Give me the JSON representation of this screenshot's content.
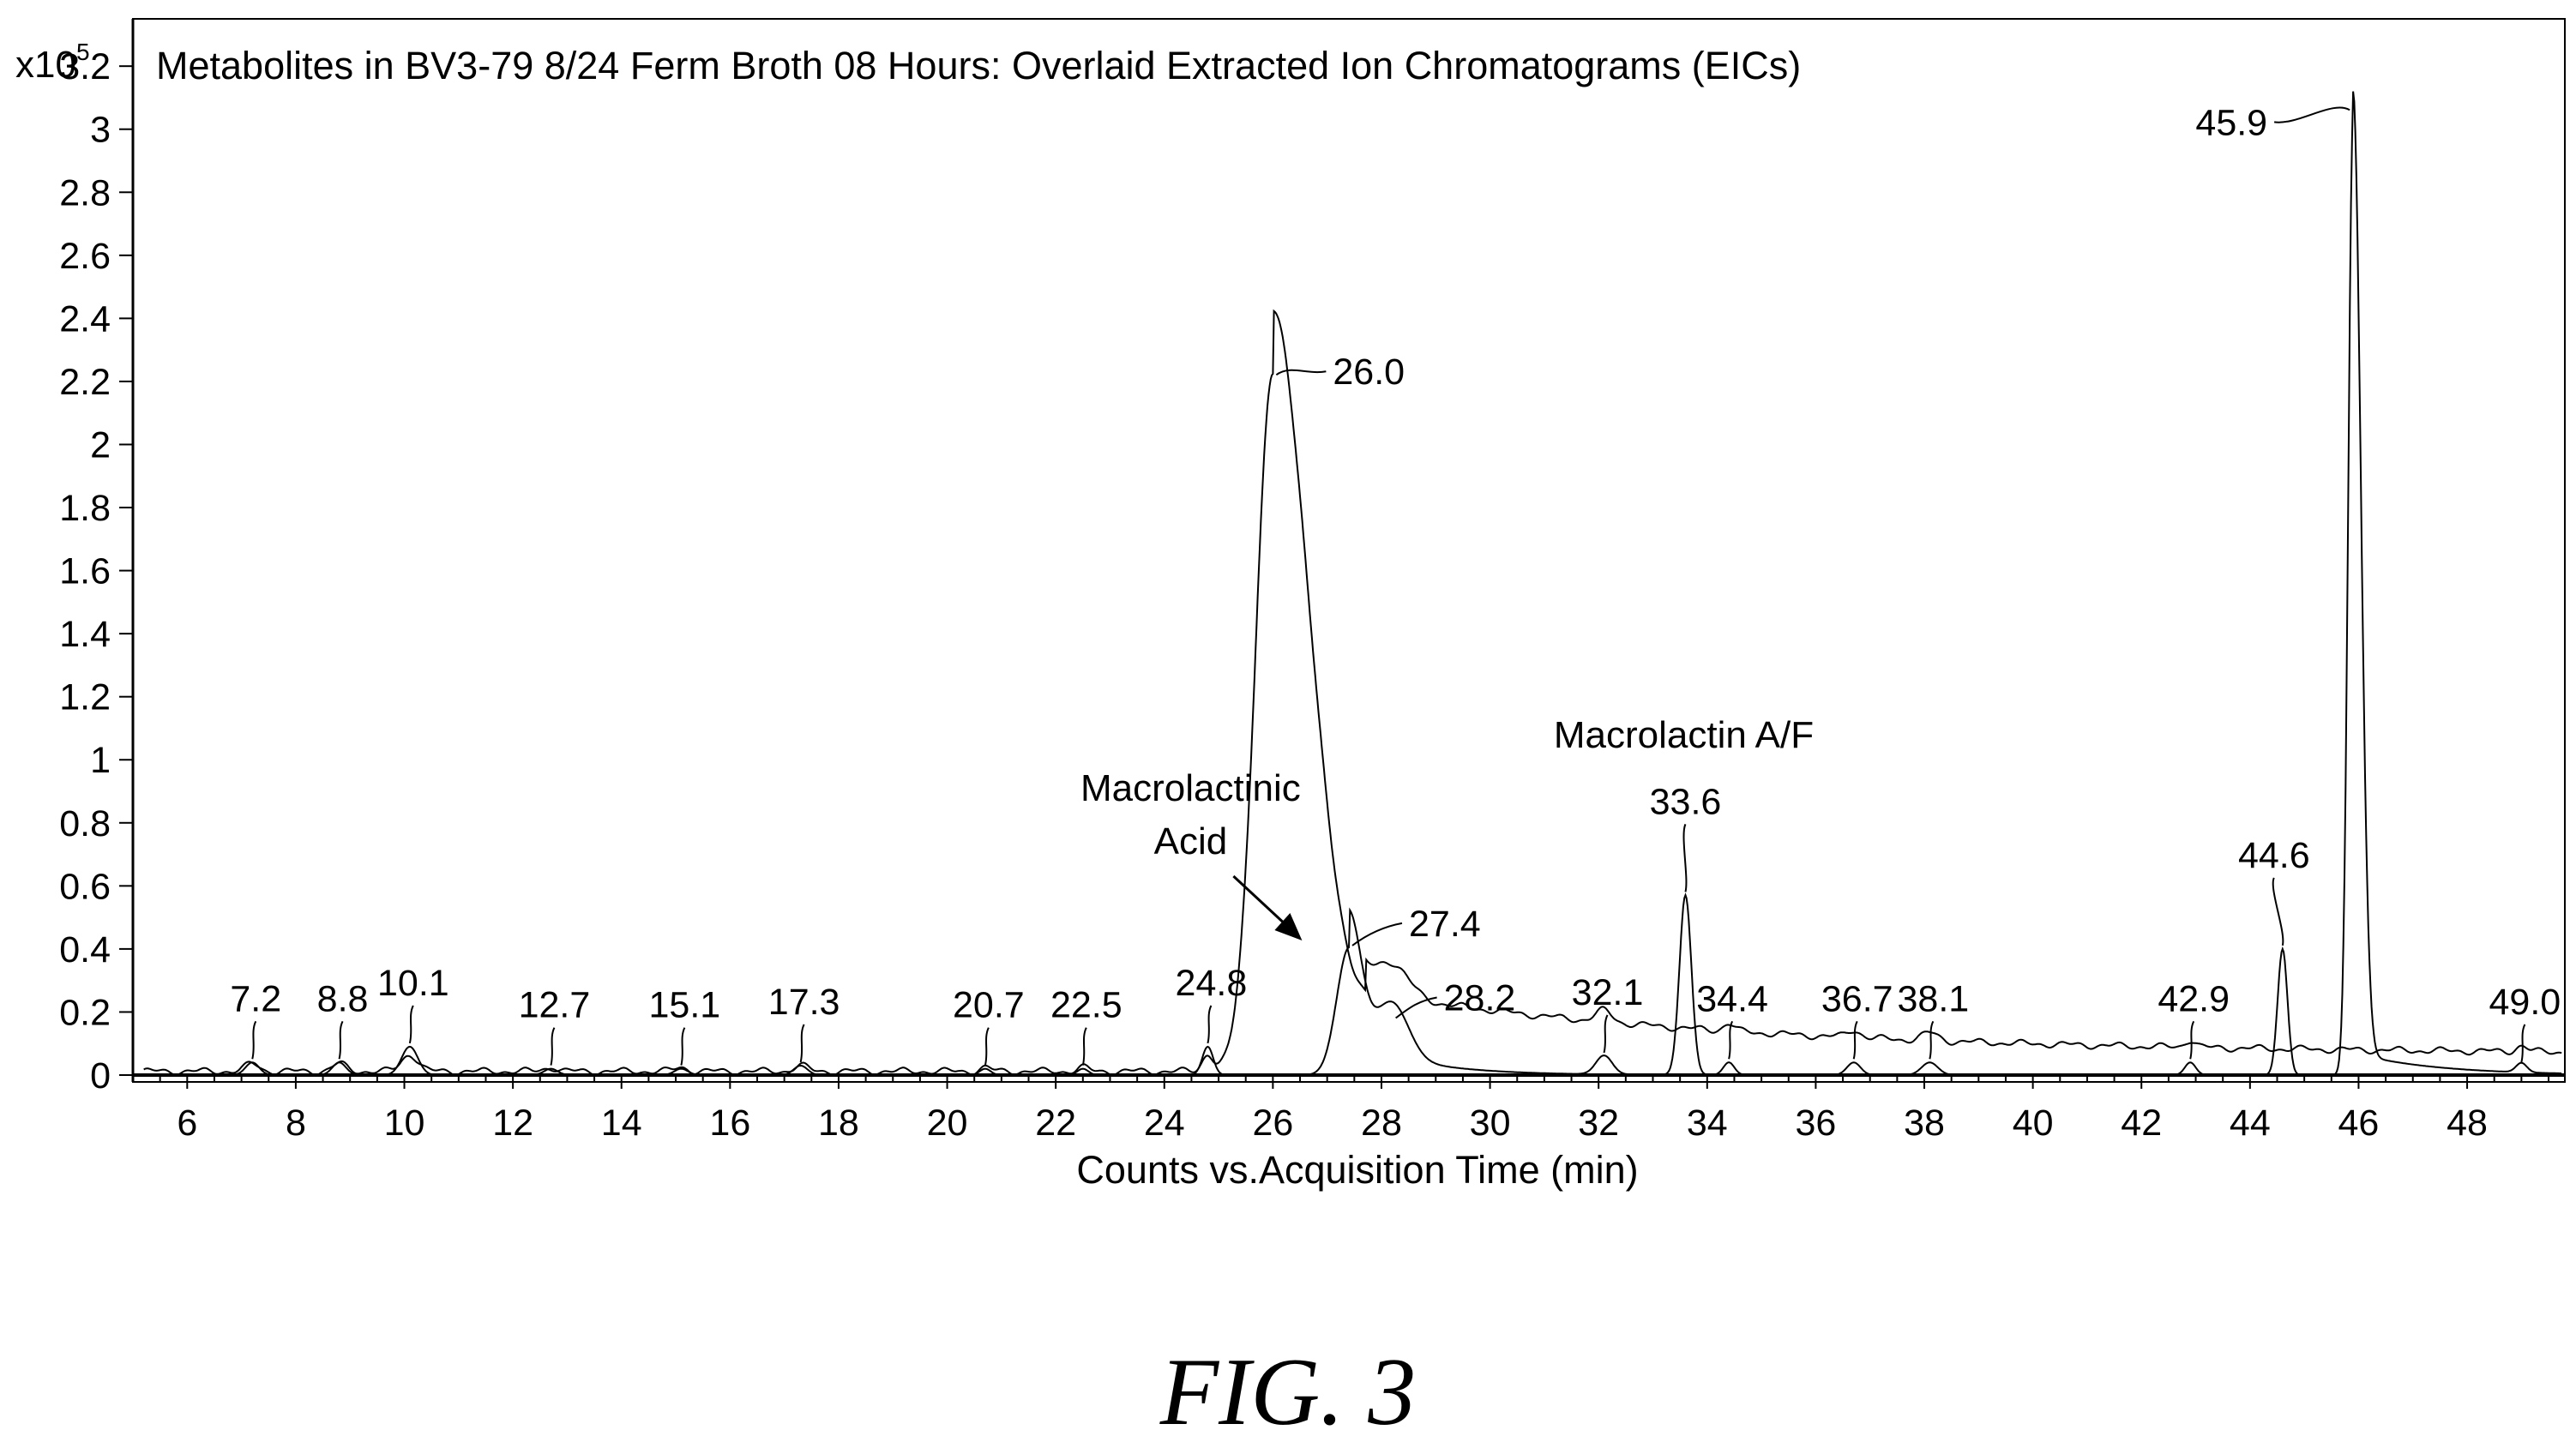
{
  "chart_data": {
    "type": "line",
    "title": "Metabolites in BV3-79 8/24 Ferm Broth 08 Hours: Overlaid Extracted Ion Chromatograms (EICs)",
    "xlabel": "Counts vs.Acquisition Time (min)",
    "ylabel": "",
    "y_multiplier": "x10",
    "y_multiplier_exp": "5",
    "xlim": [
      5.0,
      49.8
    ],
    "ylim": [
      0,
      3.35
    ],
    "x_ticks": [
      6,
      8,
      10,
      12,
      14,
      16,
      18,
      20,
      22,
      24,
      26,
      28,
      30,
      32,
      34,
      36,
      38,
      40,
      42,
      44,
      46,
      48
    ],
    "x_tick_labels": [
      "6",
      "8",
      "10",
      "12",
      "14",
      "16",
      "18",
      "20",
      "22",
      "24",
      "26",
      "28",
      "30",
      "32",
      "34",
      "36",
      "38",
      "40",
      "42",
      "44",
      "46",
      "48"
    ],
    "y_ticks": [
      0,
      0.2,
      0.4,
      0.6,
      0.8,
      1,
      1.2,
      1.4,
      1.6,
      1.8,
      2,
      2.2,
      2.4,
      2.6,
      2.8,
      3,
      3.2
    ],
    "y_tick_labels": [
      "0",
      "0.2",
      "0.4",
      "0.6",
      "0.8",
      "1",
      "1.2",
      "1.4",
      "1.6",
      "1.8",
      "2",
      "2.2",
      "2.4",
      "2.6",
      "2.8",
      "3",
      "3.2"
    ],
    "grid": false,
    "peaks": [
      {
        "x": 7.2,
        "label": "7.2",
        "height": 0.04,
        "width": 0.25
      },
      {
        "x": 8.8,
        "label": "8.8",
        "height": 0.04,
        "width": 0.25
      },
      {
        "x": 10.1,
        "label": "10.1",
        "height": 0.09,
        "width": 0.3
      },
      {
        "x": 12.7,
        "label": "12.7",
        "height": 0.02,
        "width": 0.25
      },
      {
        "x": 15.1,
        "label": "15.1",
        "height": 0.02,
        "width": 0.25
      },
      {
        "x": 17.3,
        "label": "17.3",
        "height": 0.03,
        "width": 0.25
      },
      {
        "x": 20.7,
        "label": "20.7",
        "height": 0.02,
        "width": 0.2
      },
      {
        "x": 22.5,
        "label": "22.5",
        "height": 0.02,
        "width": 0.2
      },
      {
        "x": 24.8,
        "label": "24.8",
        "height": 0.09,
        "width": 0.2
      },
      {
        "x": 26.0,
        "label": "26.0",
        "height": 2.21,
        "width": 0.55
      },
      {
        "x": 27.4,
        "label": "27.4",
        "height": 0.4,
        "width": 0.45
      },
      {
        "x": 28.2,
        "label": "28.2",
        "height": 0.17,
        "width": 0.6
      },
      {
        "x": 32.1,
        "label": "32.1",
        "height": 0.06,
        "width": 0.3
      },
      {
        "x": 33.6,
        "label": "33.6",
        "height": 0.57,
        "width": 0.22
      },
      {
        "x": 34.4,
        "label": "34.4",
        "height": 0.04,
        "width": 0.2
      },
      {
        "x": 36.7,
        "label": "36.7",
        "height": 0.04,
        "width": 0.25
      },
      {
        "x": 38.1,
        "label": "38.1",
        "height": 0.04,
        "width": 0.3
      },
      {
        "x": 42.9,
        "label": "42.9",
        "height": 0.04,
        "width": 0.2
      },
      {
        "x": 44.6,
        "label": "44.6",
        "height": 0.4,
        "width": 0.18
      },
      {
        "x": 45.9,
        "label": "45.9",
        "height": 3.05,
        "width": 0.22
      },
      {
        "x": 49.0,
        "label": "49.0",
        "height": 0.03,
        "width": 0.2
      }
    ],
    "annotations": [
      {
        "text": "Macrolactinic",
        "line2": "Acid",
        "x": 24.8
      },
      {
        "text": "Macrolactin A/F",
        "x": 33.6
      }
    ]
  },
  "figure_caption": "FIG. 3"
}
